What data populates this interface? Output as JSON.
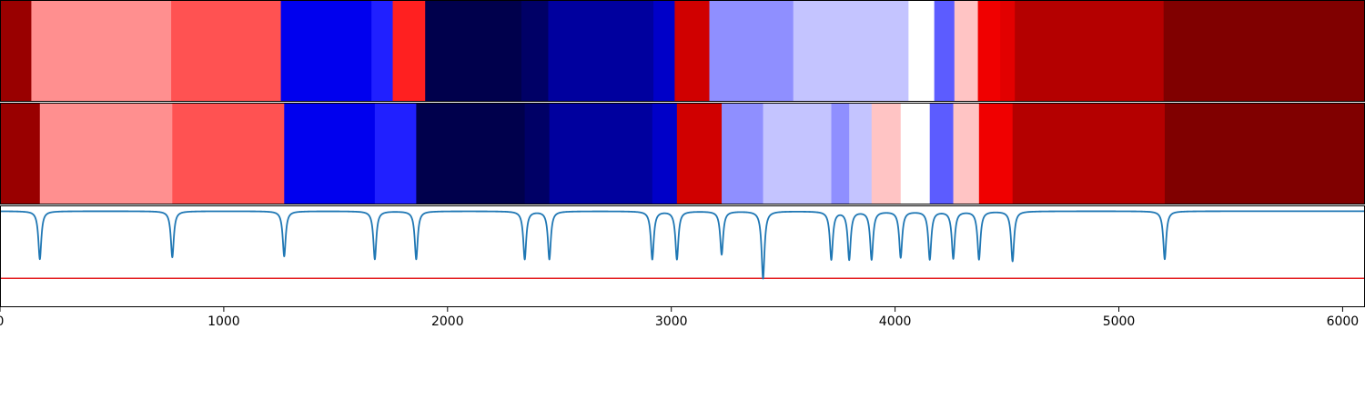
{
  "chart_data": {
    "type": "heatmap",
    "xlim": [
      0,
      6100
    ],
    "xticks": [
      0,
      1000,
      2000,
      3000,
      4000,
      5000,
      6000
    ],
    "xtick_labels": [
      "0",
      "1000",
      "2000",
      "3000",
      "4000",
      "5000",
      "6000"
    ],
    "colormap": "seismic",
    "grid": false,
    "legend": "none",
    "segment_tracks": [
      {
        "segments": [
          {
            "start": 0,
            "end": 140,
            "color": "#990000"
          },
          {
            "start": 140,
            "end": 765,
            "color": "#ff8f8f"
          },
          {
            "start": 765,
            "end": 1255,
            "color": "#ff5252"
          },
          {
            "start": 1255,
            "end": 1660,
            "color": "#0000ee"
          },
          {
            "start": 1660,
            "end": 1755,
            "color": "#2020ff"
          },
          {
            "start": 1755,
            "end": 1900,
            "color": "#ff2020"
          },
          {
            "start": 1900,
            "end": 2330,
            "color": "#00004c"
          },
          {
            "start": 2330,
            "end": 2450,
            "color": "#000066"
          },
          {
            "start": 2450,
            "end": 2920,
            "color": "#00009e"
          },
          {
            "start": 2920,
            "end": 3015,
            "color": "#0000c8"
          },
          {
            "start": 3015,
            "end": 3170,
            "color": "#d00000"
          },
          {
            "start": 3170,
            "end": 3545,
            "color": "#8f8fff"
          },
          {
            "start": 3545,
            "end": 4060,
            "color": "#c4c4ff"
          },
          {
            "start": 4060,
            "end": 4175,
            "color": "#ffffff"
          },
          {
            "start": 4175,
            "end": 4265,
            "color": "#5c5cff"
          },
          {
            "start": 4265,
            "end": 4370,
            "color": "#ffc4c4"
          },
          {
            "start": 4370,
            "end": 4470,
            "color": "#f00000"
          },
          {
            "start": 4470,
            "end": 4535,
            "color": "#e20000"
          },
          {
            "start": 4535,
            "end": 5200,
            "color": "#b40000"
          },
          {
            "start": 5200,
            "end": 6100,
            "color": "#800000"
          }
        ]
      },
      {
        "segments": [
          {
            "start": 0,
            "end": 178,
            "color": "#990000"
          },
          {
            "start": 178,
            "end": 770,
            "color": "#ff8f8f"
          },
          {
            "start": 770,
            "end": 1270,
            "color": "#ff5252"
          },
          {
            "start": 1270,
            "end": 1675,
            "color": "#0000ee"
          },
          {
            "start": 1675,
            "end": 1860,
            "color": "#2020ff"
          },
          {
            "start": 1860,
            "end": 2345,
            "color": "#00004c"
          },
          {
            "start": 2345,
            "end": 2455,
            "color": "#000066"
          },
          {
            "start": 2455,
            "end": 2915,
            "color": "#00009e"
          },
          {
            "start": 2915,
            "end": 3025,
            "color": "#0000c8"
          },
          {
            "start": 3025,
            "end": 3225,
            "color": "#d00000"
          },
          {
            "start": 3225,
            "end": 3410,
            "color": "#8f8fff"
          },
          {
            "start": 3410,
            "end": 3715,
            "color": "#c4c4ff"
          },
          {
            "start": 3715,
            "end": 3795,
            "color": "#8f8fff"
          },
          {
            "start": 3795,
            "end": 3895,
            "color": "#c4c4ff"
          },
          {
            "start": 3895,
            "end": 4025,
            "color": "#ffc4c4"
          },
          {
            "start": 4025,
            "end": 4155,
            "color": "#ffffff"
          },
          {
            "start": 4155,
            "end": 4260,
            "color": "#5c5cff"
          },
          {
            "start": 4260,
            "end": 4375,
            "color": "#ffc4c4"
          },
          {
            "start": 4375,
            "end": 4525,
            "color": "#f00000"
          },
          {
            "start": 4525,
            "end": 5205,
            "color": "#b40000"
          },
          {
            "start": 5205,
            "end": 6100,
            "color": "#800000"
          }
        ]
      }
    ],
    "line_panel": {
      "ylim": [
        -1.0,
        0.06
      ],
      "baseline": 0,
      "line_color": "#1f77b4",
      "threshold_value": -0.7,
      "threshold_color": "#e31a1c",
      "dips": [
        {
          "x": 178,
          "depth": 0.5
        },
        {
          "x": 770,
          "depth": 0.48
        },
        {
          "x": 1270,
          "depth": 0.47
        },
        {
          "x": 1675,
          "depth": 0.5
        },
        {
          "x": 1860,
          "depth": 0.5
        },
        {
          "x": 2345,
          "depth": 0.5
        },
        {
          "x": 2455,
          "depth": 0.5
        },
        {
          "x": 2915,
          "depth": 0.5
        },
        {
          "x": 3025,
          "depth": 0.5
        },
        {
          "x": 3225,
          "depth": 0.45
        },
        {
          "x": 3410,
          "depth": 0.7
        },
        {
          "x": 3715,
          "depth": 0.5
        },
        {
          "x": 3795,
          "depth": 0.5
        },
        {
          "x": 3895,
          "depth": 0.5
        },
        {
          "x": 4025,
          "depth": 0.48
        },
        {
          "x": 4155,
          "depth": 0.5
        },
        {
          "x": 4260,
          "depth": 0.49
        },
        {
          "x": 4375,
          "depth": 0.5
        },
        {
          "x": 4525,
          "depth": 0.52
        },
        {
          "x": 5205,
          "depth": 0.5
        }
      ]
    }
  }
}
